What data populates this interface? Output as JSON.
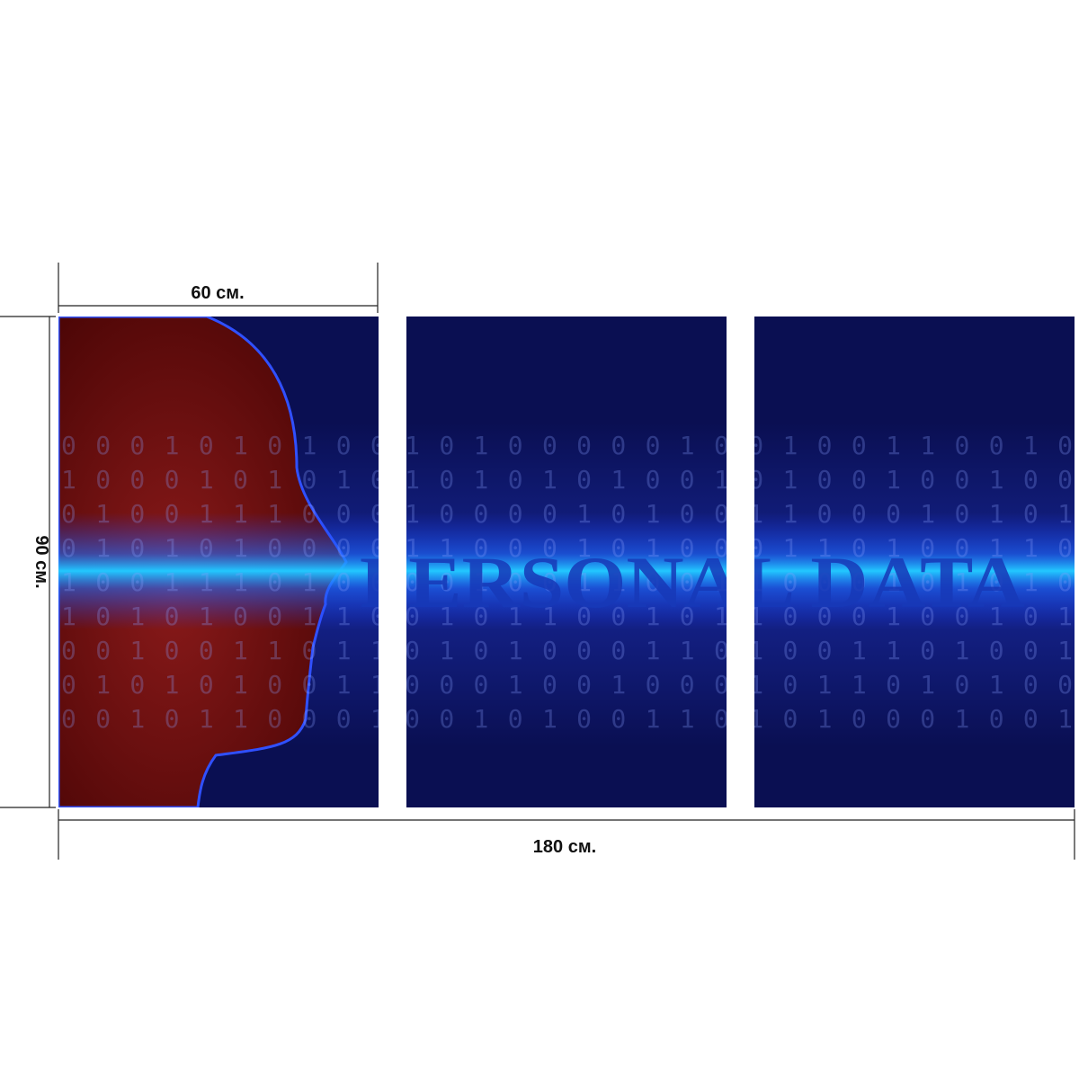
{
  "dimensions": {
    "panel_width": "60 см.",
    "height": "90 см.",
    "total_width": "180 см."
  },
  "artwork": {
    "title": "PERSONAL DATA",
    "binary_rows": [
      "000101010010100000100100110010",
      "100010101010101010010100100100",
      "010011100010000101001100010101",
      "010101000011000101000110100110",
      "100111010000100110011000101010",
      "101010011001011001011000100101",
      "001001101101010001101001101001",
      "010101001100010010001011010100",
      "001011000100101001101010001001"
    ]
  }
}
